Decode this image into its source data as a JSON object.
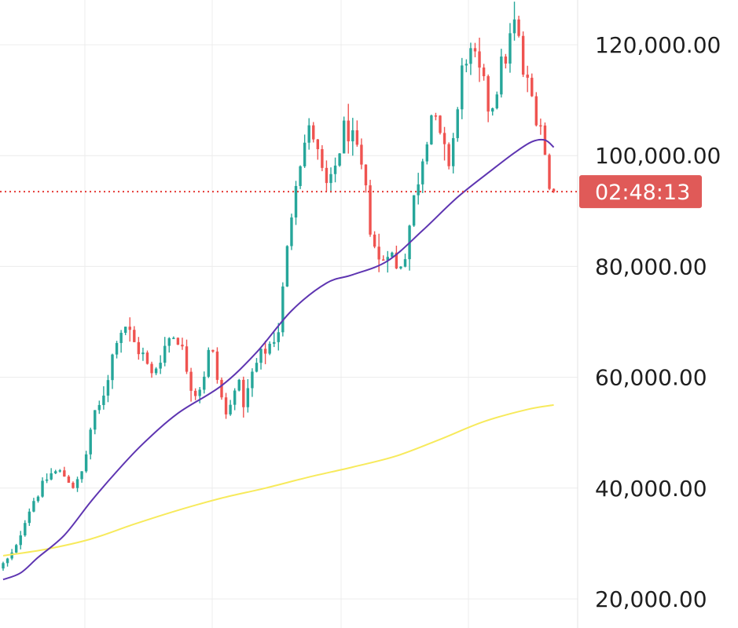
{
  "chart_data": {
    "type": "candlestick",
    "title": "",
    "xlabel": "",
    "ylabel": "",
    "ylim": [
      18000,
      129000
    ],
    "grid": true,
    "y_ticks": [
      {
        "value": 120000,
        "label": "120,000.00"
      },
      {
        "value": 100000,
        "label": "100,000.00"
      },
      {
        "value": 80000,
        "label": "80,000.00"
      },
      {
        "value": 60000,
        "label": "60,000.00"
      },
      {
        "value": 40000,
        "label": "40,000.00"
      },
      {
        "value": 20000,
        "label": "20,000.00"
      }
    ],
    "current_price": 93500,
    "countdown_label": "02:48:13",
    "colors": {
      "up": "#26a69a",
      "down": "#ef5350",
      "ma_fast": "#5e35b1",
      "ma_slow": "#f7ea5c",
      "grid": "#ececec",
      "price_line": "#e53935",
      "price_tag": "#e05a58"
    },
    "price_path": [
      25500,
      27000,
      29000,
      34000,
      37500,
      40000,
      42500,
      43000,
      42000,
      40000,
      43500,
      52000,
      55000,
      61000,
      68000,
      69500,
      66000,
      64000,
      60000,
      63500,
      67000,
      68000,
      63000,
      57000,
      59000,
      66000,
      58000,
      52000,
      60000,
      55000,
      61000,
      64000,
      66000,
      68500,
      82000,
      96000,
      102000,
      105000,
      97000,
      93000,
      100000,
      106000,
      101000,
      96000,
      86000,
      80000,
      84000,
      79000,
      83000,
      92000,
      100000,
      108000,
      103000,
      98000,
      106000,
      119000,
      117000,
      113000,
      108000,
      114000,
      119000,
      124000,
      114000,
      110000,
      106000,
      93500
    ],
    "ma_fast": [
      {
        "i": 0,
        "v": 23500
      },
      {
        "i": 4,
        "v": 24700
      },
      {
        "i": 8,
        "v": 27500
      },
      {
        "i": 14,
        "v": 31500
      },
      {
        "i": 20,
        "v": 37500
      },
      {
        "i": 26,
        "v": 43000
      },
      {
        "i": 32,
        "v": 48000
      },
      {
        "i": 40,
        "v": 53500
      },
      {
        "i": 50,
        "v": 58500
      },
      {
        "i": 58,
        "v": 64500
      },
      {
        "i": 66,
        "v": 72000
      },
      {
        "i": 74,
        "v": 77000
      },
      {
        "i": 80,
        "v": 78500
      },
      {
        "i": 88,
        "v": 81000
      },
      {
        "i": 96,
        "v": 86500
      },
      {
        "i": 104,
        "v": 92500
      },
      {
        "i": 112,
        "v": 97500
      },
      {
        "i": 117,
        "v": 100500
      },
      {
        "i": 121,
        "v": 102500
      },
      {
        "i": 124,
        "v": 102800
      },
      {
        "i": 126,
        "v": 101500
      }
    ],
    "ma_slow": [
      {
        "i": 0,
        "v": 27800
      },
      {
        "i": 10,
        "v": 29000
      },
      {
        "i": 20,
        "v": 30800
      },
      {
        "i": 30,
        "v": 33500
      },
      {
        "i": 40,
        "v": 36000
      },
      {
        "i": 50,
        "v": 38200
      },
      {
        "i": 60,
        "v": 40000
      },
      {
        "i": 70,
        "v": 42000
      },
      {
        "i": 80,
        "v": 43800
      },
      {
        "i": 90,
        "v": 45800
      },
      {
        "i": 100,
        "v": 48800
      },
      {
        "i": 110,
        "v": 52000
      },
      {
        "i": 120,
        "v": 54200
      },
      {
        "i": 126,
        "v": 55000
      }
    ]
  }
}
